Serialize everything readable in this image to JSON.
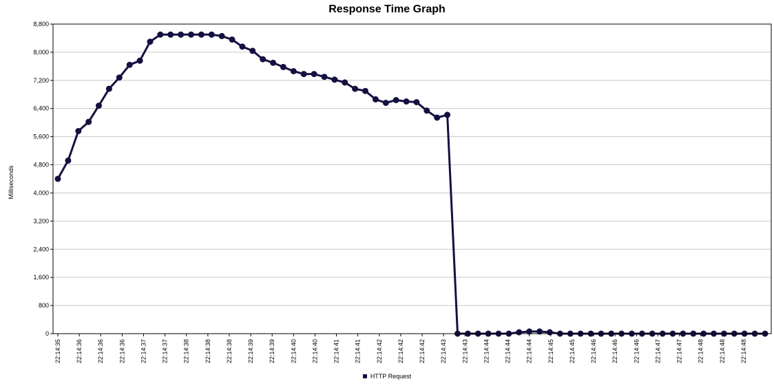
{
  "chart_data": {
    "type": "line",
    "title": "Response Time Graph",
    "ylabel": "Milliseconds",
    "xlabel": "",
    "ylim": [
      0,
      8800
    ],
    "yticks": [
      0,
      800,
      1600,
      2400,
      3200,
      4000,
      4800,
      5600,
      6400,
      7200,
      8000,
      8800
    ],
    "ytick_labels": [
      "0",
      "800",
      "1,600",
      "2,400",
      "3,200",
      "4,000",
      "4,800",
      "5,600",
      "6,400",
      "7,200",
      "8,000",
      "8,800"
    ],
    "xtick_labels": [
      "22:14:35",
      "22:14:36",
      "22:14:36",
      "22:14:36",
      "22:14:37",
      "22:14:37",
      "22:14:38",
      "22:14:38",
      "22:14:38",
      "22:14:39",
      "22:14:39",
      "22:14:40",
      "22:14:40",
      "22:14:41",
      "22:14:41",
      "22:14:42",
      "22:14:42",
      "22:14:42",
      "22:14:43",
      "22:14:43",
      "22:14:44",
      "22:14:44",
      "22:14:44",
      "22:14:45",
      "22:14:45",
      "22:14:46",
      "22:14:46",
      "22:14:46",
      "22:14:47",
      "22:14:47",
      "22:14:48",
      "22:14:48",
      "22:14:48"
    ],
    "grid": true,
    "legend": "bottom",
    "series": [
      {
        "name": "HTTP Request",
        "color": "#141040",
        "values": [
          4400,
          4920,
          5760,
          6020,
          6480,
          6960,
          7280,
          7640,
          7760,
          8300,
          8500,
          8500,
          8500,
          8500,
          8500,
          8500,
          8460,
          8360,
          8160,
          8040,
          7800,
          7700,
          7580,
          7460,
          7380,
          7380,
          7300,
          7220,
          7140,
          6960,
          6900,
          6660,
          6560,
          6640,
          6600,
          6580,
          6340,
          6140,
          6220,
          0,
          0,
          0,
          0,
          0,
          0,
          40,
          60,
          60,
          40,
          0,
          0,
          0,
          0,
          0,
          0,
          0,
          0,
          0,
          0,
          0,
          0,
          0,
          0,
          0,
          0,
          0,
          0,
          0,
          0,
          0
        ]
      }
    ]
  }
}
